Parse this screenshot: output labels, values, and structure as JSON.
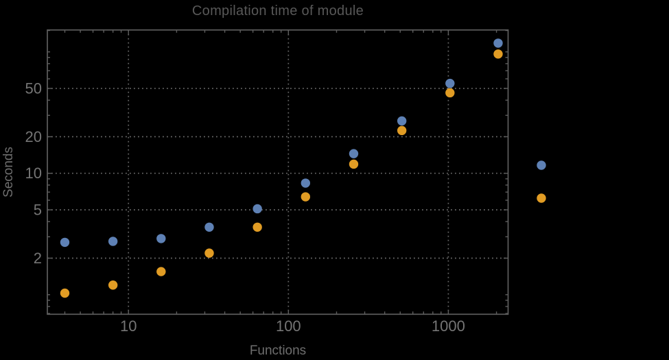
{
  "page": {
    "background": "#000000"
  },
  "chart_data": {
    "type": "scatter",
    "title": "Compilation time of module",
    "xlabel": "Functions",
    "ylabel": "Seconds",
    "x_scale": "log",
    "y_scale": "log",
    "xlim": [
      3.11,
      2364
    ],
    "ylim": [
      0.69,
      151.5
    ],
    "grid": "dotted",
    "legend_position": "right-outside",
    "x_tick_labels": [
      "10",
      "100",
      "1000"
    ],
    "x_tick_values": [
      10,
      100,
      1000
    ],
    "y_tick_labels": [
      "2",
      "5",
      "10",
      "20",
      "50"
    ],
    "y_tick_values": [
      2,
      5,
      10,
      20,
      50
    ],
    "x_minor_ticks": [
      4,
      5,
      6,
      7,
      8,
      9,
      20,
      30,
      40,
      50,
      60,
      70,
      80,
      90,
      200,
      300,
      400,
      500,
      600,
      700,
      800,
      900,
      2000
    ],
    "y_minor_ticks": [
      0.7,
      0.8,
      0.9,
      1,
      3,
      4,
      6,
      7,
      8,
      9,
      30,
      40,
      60,
      70,
      80,
      90,
      100,
      150
    ],
    "x": [
      4,
      8,
      16,
      32,
      64,
      128,
      256,
      512,
      1024,
      2048
    ],
    "series": [
      {
        "name": "series-1-blue",
        "color": "#5e81b5",
        "values": [
          2.7,
          2.75,
          2.9,
          3.6,
          5.1,
          8.3,
          14.5,
          27,
          55,
          118
        ]
      },
      {
        "name": "series-2-orange",
        "color": "#e19c24",
        "values": [
          1.03,
          1.2,
          1.55,
          2.2,
          3.6,
          6.4,
          11.9,
          22.5,
          46,
          96
        ]
      }
    ],
    "legend": {
      "items": [
        {
          "label": "",
          "color": "#5e81b5"
        },
        {
          "label": "",
          "color": "#e19c24"
        }
      ]
    },
    "colors": {
      "frame": "#5e5e5e",
      "grid": "#696969",
      "tick_label": "#757575",
      "title": "#585858",
      "axis_label": "#6e6e6e"
    }
  }
}
